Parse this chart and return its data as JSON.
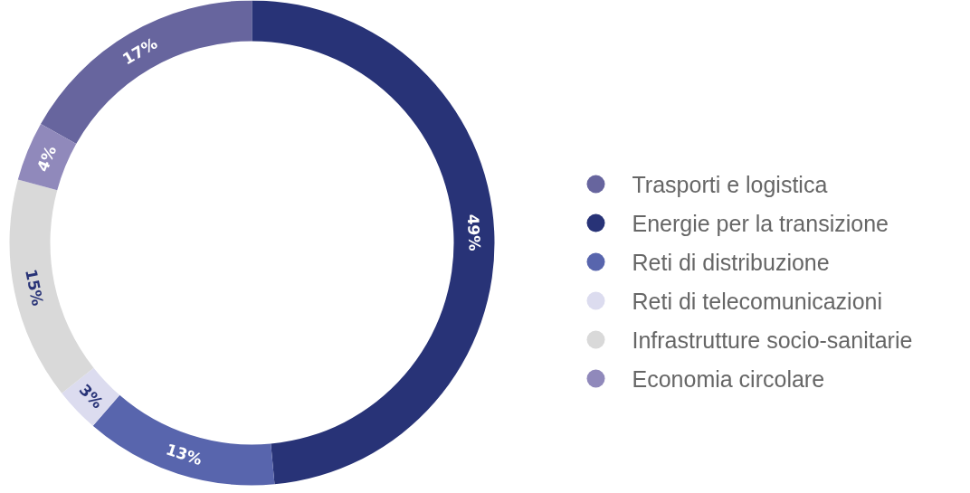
{
  "chart_data": {
    "type": "donut",
    "categories": [
      "Trasporti e logistica",
      "Energie per la transizione",
      "Reti di distribuzione",
      "Reti di telecomunicazioni",
      "Infrastrutture socio-sanitarie",
      "Economia circolare"
    ],
    "values": [
      17,
      49,
      13,
      3,
      15,
      4
    ],
    "value_labels": [
      "17%",
      "49%",
      "13%",
      "3%",
      "15%",
      "4%"
    ],
    "colors": [
      "#67659e",
      "#283377",
      "#5865ad",
      "#dcdcef",
      "#d9d9d9",
      "#9089bb"
    ],
    "legend": "right"
  }
}
